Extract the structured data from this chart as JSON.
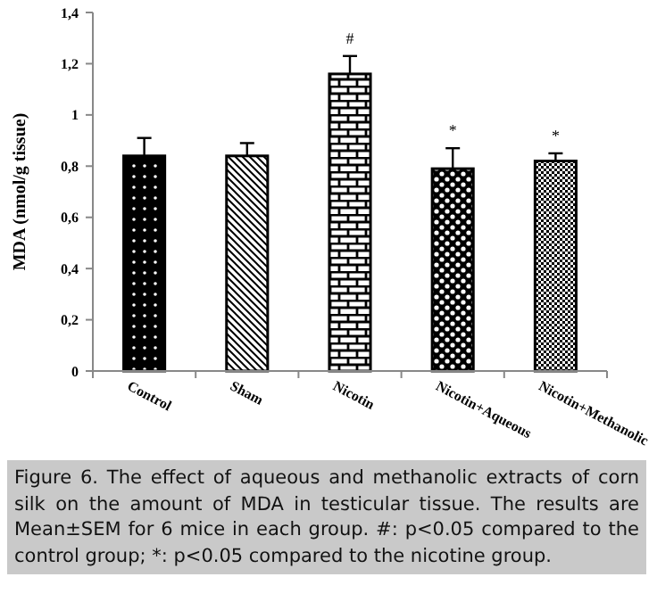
{
  "chart_data": {
    "type": "bar",
    "ylabel": "MDA (nmol/g tissue)",
    "categories": [
      "Control",
      "Sham",
      "Nicotin",
      "Nicotin+Aqueous",
      "Nicotin+Methanolic"
    ],
    "values": [
      0.84,
      0.84,
      1.16,
      0.79,
      0.82
    ],
    "errors": [
      0.07,
      0.05,
      0.07,
      0.08,
      0.03
    ],
    "colors": [
      "#000000",
      "#000000",
      "#000000",
      "#000000",
      "#000000"
    ],
    "ylim": [
      0,
      1.4
    ],
    "yticks": [
      0,
      {
        "value": 0.2,
        "label": "0,2"
      },
      {
        "value": 0.4,
        "label": "0,4"
      },
      {
        "value": 0.6,
        "label": "0,6"
      },
      {
        "value": 0.8,
        "label": "0,8"
      },
      1,
      {
        "value": 1.2,
        "label": "1,2"
      },
      {
        "value": 1.4,
        "label": "1,4"
      }
    ],
    "grid": false,
    "annotations": [
      {
        "text": "#",
        "x": "Nicotin",
        "y": 1.16
      },
      {
        "text": "*",
        "x": "Nicotin+Aqueous",
        "y": 0.79
      },
      {
        "text": "*",
        "x": "Nicotin+Methanolic",
        "y": 0.82
      },
      "Figure 6. The effect of aqueous and methanolic extracts of corn silk on the amount of MDA in testicular tissue. The results are Mean±SEM for 6 mice in each group. #: p<0.05 compared to the control group; *: p<0.05 compared to the nicotine group."
    ]
  }
}
